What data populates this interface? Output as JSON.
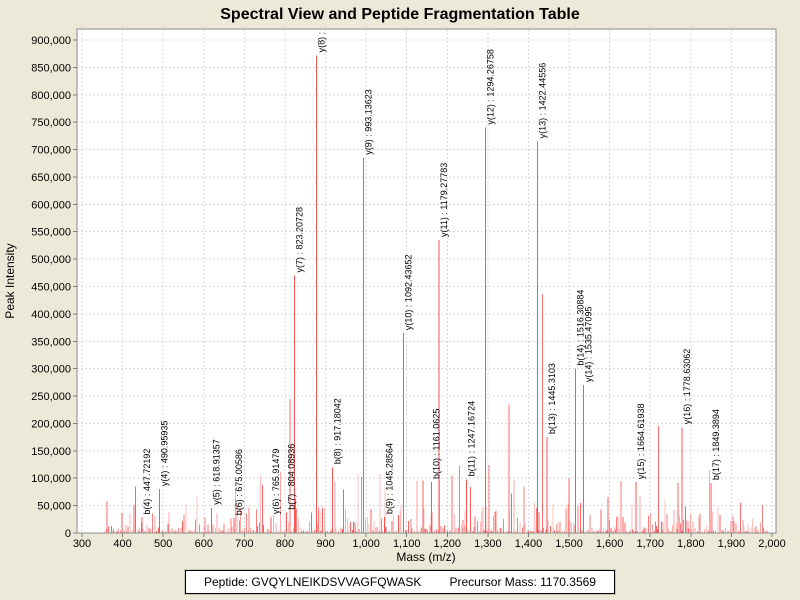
{
  "title": "Spectral View and Peptide Fragmentation Table",
  "footer": {
    "peptide_label": "Peptide:",
    "peptide_value": "GVQYLNEIKDSVVAGFQWASK",
    "precursor_label": "Precursor Mass:",
    "precursor_value": "1170.3569"
  },
  "chart_data": {
    "type": "bar",
    "variant": "mass-spectrum-stick-plot",
    "title": "Spectral View and Peptide Fragmentation Table",
    "xlabel": "Mass (m/z)",
    "ylabel": "Peak Intensity",
    "xlim": [
      288,
      2010
    ],
    "ylim": [
      0,
      920000
    ],
    "grid": "dashed-both-axes",
    "legend": "none",
    "x_tick_values": [
      300,
      400,
      500,
      600,
      700,
      800,
      900,
      1000,
      1100,
      1200,
      1300,
      1400,
      1500,
      1600,
      1700,
      1800,
      1900,
      2000
    ],
    "x_tick_labels": [
      "300",
      "400",
      "500",
      "600",
      "700",
      "800",
      "900",
      "1,000",
      "1,100",
      "1,200",
      "1,300",
      "1,400",
      "1,500",
      "1,600",
      "1,700",
      "1,800",
      "1,900",
      "2,000"
    ],
    "y_tick_values": [
      0,
      50000,
      100000,
      150000,
      200000,
      250000,
      300000,
      350000,
      400000,
      450000,
      500000,
      550000,
      600000,
      650000,
      700000,
      750000,
      800000,
      850000,
      900000
    ],
    "y_tick_labels": [
      "0",
      "50,000",
      "100,000",
      "150,000",
      "200,000",
      "250,000",
      "300,000",
      "350,000",
      "400,000",
      "450,000",
      "500,000",
      "550,000",
      "600,000",
      "650,000",
      "700,000",
      "750,000",
      "800,000",
      "850,000",
      "900,000"
    ],
    "labeled_peaks": [
      {
        "ion": "b4",
        "label": "b(4) : 447.72192",
        "mz": 447.72192,
        "intensity": 28000
      },
      {
        "ion": "y4",
        "label": "y(4) : 490.95935",
        "mz": 490.95935,
        "intensity": 80000
      },
      {
        "ion": "y5",
        "label": "y(5) : 618.91357",
        "mz": 618.91357,
        "intensity": 46000
      },
      {
        "ion": "b6",
        "label": "b(6) : 675.00586",
        "mz": 675.00586,
        "intensity": 27000
      },
      {
        "ion": "y6",
        "label": "y(6) : 765.91479",
        "mz": 765.91479,
        "intensity": 29000
      },
      {
        "ion": "b7",
        "label": "b(7) : 804.08936",
        "mz": 804.08936,
        "intensity": 37000
      },
      {
        "ion": "y7",
        "label": "y(7) : 823.20728",
        "mz": 823.20728,
        "intensity": 470000
      },
      {
        "ion": "y8",
        "label": "y(8) :",
        "mz": 877.5,
        "intensity": 872000,
        "label_clipped": true
      },
      {
        "ion": "b8",
        "label": "b(8) : 917.18042",
        "mz": 917.18042,
        "intensity": 120000
      },
      {
        "ion": "y9",
        "label": "y(9) : 993.13623",
        "mz": 993.13623,
        "intensity": 685000
      },
      {
        "ion": "b9",
        "label": "b(9) : 1045.28564",
        "mz": 1045.28564,
        "intensity": 29000
      },
      {
        "ion": "y10",
        "label": "y(10) : 1092.43652",
        "mz": 1092.43652,
        "intensity": 365000
      },
      {
        "ion": "b10",
        "label": "b(10) : 1161.0625",
        "mz": 1161.0625,
        "intensity": 93000
      },
      {
        "ion": "y11",
        "label": "y(11) : 1179.27783",
        "mz": 1179.27783,
        "intensity": 535000
      },
      {
        "ion": "b11",
        "label": "b(11) : 1247.16724",
        "mz": 1247.16724,
        "intensity": 98000
      },
      {
        "ion": "y12",
        "label": "y(12) : 1294.26758",
        "mz": 1294.26758,
        "intensity": 740000
      },
      {
        "ion": "y13",
        "label": "y(13) : 1422.44556",
        "mz": 1422.44556,
        "intensity": 715000
      },
      {
        "ion": "b13",
        "label": "b(13) : 1445.3103",
        "mz": 1445.3103,
        "intensity": 175000
      },
      {
        "ion": "b14",
        "label": "b(14) : 1516.30884",
        "mz": 1516.30884,
        "intensity": 300000
      },
      {
        "ion": "y14",
        "label": "y(14) : 1535.47095",
        "mz": 1535.47095,
        "intensity": 270000
      },
      {
        "ion": "y15",
        "label": "y(15) : 1664.61938",
        "mz": 1664.61938,
        "intensity": 93000
      },
      {
        "ion": "y16",
        "label": "y(16) : 1778.63062",
        "mz": 1778.63062,
        "intensity": 193000
      },
      {
        "ion": "b17",
        "label": "b(17) : 1849.3894",
        "mz": 1849.3894,
        "intensity": 91000
      }
    ],
    "unlabeled_major_peaks": [
      {
        "mz": 361,
        "intensity": 58000
      },
      {
        "mz": 745,
        "intensity": 88000
      },
      {
        "mz": 812,
        "intensity": 245000
      },
      {
        "mz": 1212,
        "intensity": 105000
      },
      {
        "mz": 1352,
        "intensity": 235000
      },
      {
        "mz": 1434,
        "intensity": 435000
      },
      {
        "mz": 1500,
        "intensity": 100000
      },
      {
        "mz": 1720,
        "intensity": 195000
      },
      {
        "mz": 1922,
        "intensity": 55000
      }
    ],
    "noise_layer": {
      "description": "dense unlabeled background peaks",
      "seed": 1337,
      "mz_min": 356,
      "mz_max": 1990,
      "base_intensity": 3500,
      "spread_intensity": 52000,
      "spike_chance": 0.055,
      "spike_min": 60000,
      "spike_extra": 65000
    },
    "colors": {
      "peak_main": "#f85555",
      "noise_palette": [
        "#ffa6a6",
        "#fb7e7e",
        "#f96060",
        "#ffbdbd"
      ],
      "background": "#ece9d8",
      "plot_background": "#ffffff",
      "gridline": "#d9d9d9",
      "label_text": "#000000"
    }
  }
}
